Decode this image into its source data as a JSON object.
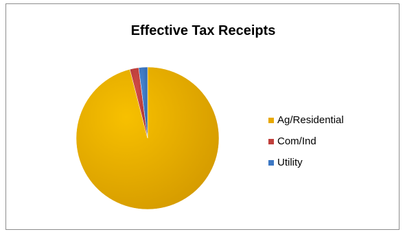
{
  "chart_data": {
    "type": "pie",
    "title": "Effective Tax Receipts",
    "legend_position": "right",
    "categories": [
      "Ag/Residential",
      "Com/Ind",
      "Utility"
    ],
    "values": [
      96,
      2,
      2
    ],
    "colors": [
      "#e8a800",
      "#c0403c",
      "#3d78c4"
    ]
  }
}
